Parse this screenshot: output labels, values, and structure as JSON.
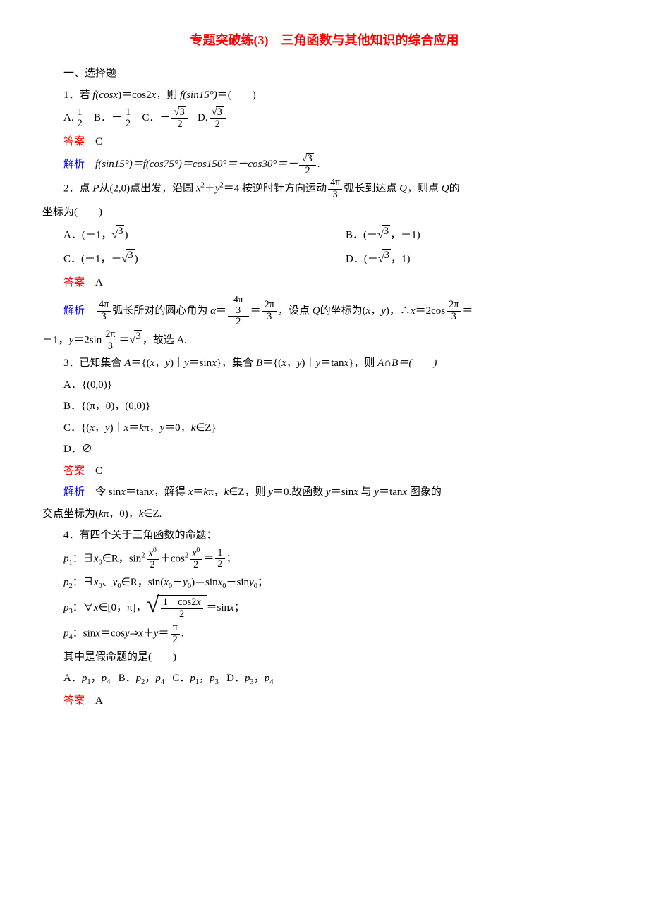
{
  "title": "专题突破练(3)　三角函数与其他知识的综合应用",
  "section_heading": "一、选择题",
  "colors": {
    "title": "#ff0000",
    "answer": "#ff0000",
    "explain": "#0000ff",
    "text": "#000000",
    "background": "#ffffff"
  },
  "typography": {
    "body_font": "SimSun",
    "body_size_pt": 11,
    "title_size_pt": 14,
    "title_weight": "bold"
  },
  "q1": {
    "stem_prefix": "1．若 ",
    "stem_mid": "＝cos2",
    "stem_suffix": "，则 ",
    "stem_end": "＝(　　)",
    "fcos": "f(cos",
    "x": "x",
    "x_close": ")",
    "fsin15": "f(sin15°)",
    "optA_label": "A.",
    "optA_num": "1",
    "optA_den": "2",
    "optB_label": "B．－",
    "optB_num": "1",
    "optB_den": "2",
    "optC_label": "C．－",
    "optC_num_sqrt": "3",
    "optC_den": "2",
    "optD_label": "D.",
    "optD_num_sqrt": "3",
    "optD_den": "2",
    "answer_label": "答案",
    "answer": "C",
    "explain_label": "解析",
    "explain_1": "f(sin15°)＝f(cos75°)＝cos150°＝－cos30°＝－",
    "explain_frac_num_sqrt": "3",
    "explain_frac_den": "2",
    "explain_tail": "."
  },
  "q2": {
    "stem_1": "2．点 ",
    "P": "P",
    "from": "从(2,0)点出发，沿圆 ",
    "eq_x": "x",
    "eq_sup2a": "2",
    "eq_plus": "＋",
    "eq_y": "y",
    "eq_sup2b": "2",
    "eq4": "＝4 按逆时针方向运动",
    "arc_num": "4π",
    "arc_den": "3",
    "stem_2": "弧长到达点 ",
    "Q": "Q",
    "stem_3": "，则点 ",
    "stem_4": "的",
    "coord_line": "坐标为(　　)",
    "optA": "A．(－1，",
    "optA_sqrt": "3",
    "optA_close": ")",
    "optB": "B．(－",
    "optB_sqrt": "3",
    "optB_close": "，－1)",
    "optC": "C．(－1，－",
    "optC_sqrt": "3",
    "optC_close": ")",
    "optD": "D．(－",
    "optD_sqrt": "3",
    "optD_close": "，1)",
    "answer_label": "答案",
    "answer": "A",
    "explain_label": "解析",
    "e1_num": "4π",
    "e1_den": "3",
    "e1_text": "弧长所对的圆心角为 ",
    "alpha": "α",
    "eq": "＝",
    "e2_top_num": "4π",
    "e2_top_den": "3",
    "e2_den": "2",
    "e3_eq": "＝",
    "e3_num": "2π",
    "e3_den": "3",
    "e4": "，设点 ",
    "Q2": "Q",
    "e5": "的坐标为(",
    "xvar": "x",
    "comma": "，",
    "yvar": "y",
    "e6": ")，∴",
    "e7": "＝2cos",
    "e8_num": "2π",
    "e8_den": "3",
    "e9": "＝",
    "line2_a": "－1，",
    "y2": "y",
    "line2_b": "＝2sin",
    "l2_num": "2π",
    "l2_den": "3",
    "line2_c": "＝",
    "l2_sqrt": "3",
    "line2_d": "，故选 A."
  },
  "q3": {
    "stem_a": "3．已知集合 ",
    "A": "A",
    "eqA": "＝{(",
    "x": "x",
    "c": "，",
    "y": "y",
    "bar": ")｜",
    "yeq": "＝sin",
    "close": "}，集合 ",
    "B": "B",
    "eqB": "＝{(",
    "yeq2": "＝tan",
    "close2": "}，则 ",
    "AcapB": "A∩B＝(　　)",
    "optA": "A．{(0,0)}",
    "optB": "B．{(π，0)，(0,0)}",
    "optC_a": "C．{(",
    "optC_b": ")｜",
    "optC_c": "＝",
    "k": "k",
    "optC_d": "π，",
    "optC_e": "＝0，",
    "optC_f": "∈Z}",
    "optD": "D．∅",
    "answer_label": "答案",
    "answer": "C",
    "explain_label": "解析",
    "e1": "令 sin",
    "e2": "＝tan",
    "e3": "，解得 ",
    "e4": "＝",
    "e5": "π，",
    "e6": "∈Z，则 ",
    "e7": "＝0.故函数 ",
    "e8": "＝sin",
    "e9": " 与 ",
    "e10": "＝tan",
    "e11": " 图象的",
    "l2a": "交点坐标为(",
    "l2b": "π，0)，",
    "l2c": "∈Z."
  },
  "q4": {
    "stem": "4．有四个关于三角函数的命题：",
    "p1_label": "p",
    "p1_sub": "1",
    "p1_a": "：∃",
    "x0": "x",
    "sub0": "0",
    "inR": "∈R，sin",
    "sup2": "2",
    "p1_num": "x",
    "p1_num_sup": "0",
    "p1_den": "2",
    "plus": "＋cos",
    "p1_eq": "＝",
    "half_num": "1",
    "half_den": "2",
    "semi": "；",
    "p2_sub": "2",
    "p2_a": "：∃",
    "y0": "y",
    "p2_b": "∈R，sin(",
    "minus": "－",
    "p2_c": ")＝sin",
    "p2_d": "－sin",
    "p2_e": "；",
    "p3_sub": "3",
    "p3_a": "：∀",
    "xv": "x",
    "p3_b": "∈[0，π]，",
    "p3_rad_num": "1－cos2",
    "p3_rad_den": "2",
    "p3_c": "＝sin",
    "p3_d": "；",
    "p4_sub": "4",
    "p4_a": "：sin",
    "p4_b": "＝cos",
    "yv": "y",
    "p4_c": "⇒",
    "p4_d": "＋",
    "p4_e": "＝",
    "pi2_num": "π",
    "pi2_den": "2",
    "p4_f": ".",
    "ask": "其中是假命题的是(　　)",
    "opts_a": "A．",
    "opts_b": "B．",
    "opts_c": "C．",
    "opts_d": "D．",
    "pair_sep": "，",
    "o14a": "1",
    "o14b": "4",
    "o24a": "2",
    "o24b": "4",
    "o13a": "1",
    "o13b": "3",
    "o34a": "3",
    "o34b": "4",
    "answer_label": "答案",
    "answer": "A"
  }
}
